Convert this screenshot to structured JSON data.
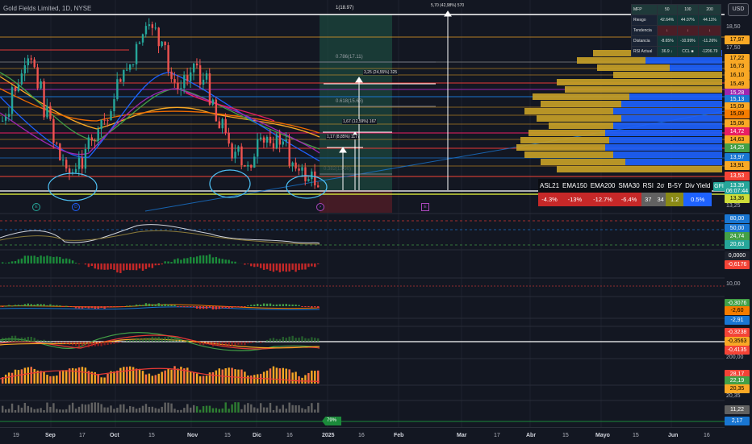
{
  "header": {
    "symbol_title": "Gold Fields Limited, 1D, NYSE",
    "currency": "USD"
  },
  "drawings": {
    "top_level_label": "1(18.97)",
    "big_measure": "5,70 (42,98%) 570",
    "fib_786": "0.786(17.11)",
    "fib_618": "0.618(15.66)",
    "fib_bottom": "0.382(13.90)",
    "measure_1": "3,25 (24,55%) 325",
    "measure_2": "1,67 (12,59%) 167",
    "measure_3": "1,17 (8,85%) 117",
    "osc_badge": "79%",
    "markers": {
      "e1": "E",
      "d": "D",
      "s": "⚡",
      "e2": "E"
    }
  },
  "mfp_table": {
    "header": [
      "MFP",
      "50",
      "100",
      "200"
    ],
    "rows": [
      {
        "label": "Riesgo",
        "values": [
          "42.64%",
          "44.07%",
          "44.11%"
        ]
      },
      {
        "label": "Tendencia",
        "values": [
          "↓",
          "↓",
          "↓"
        ]
      },
      {
        "label": "Distancia",
        "values": [
          "-8.65%",
          "-10.99%",
          "-11.26%"
        ]
      },
      {
        "label": "RSI Actual",
        "values": [
          "36.9 ↓",
          "CCL ■",
          "-1206.79"
        ]
      }
    ]
  },
  "indicator_table": {
    "headers": [
      "ASL21",
      "EMA150",
      "EMA200",
      "SMA30",
      "RSI",
      "2σ",
      "B-5Y",
      "Div Yield"
    ],
    "values": [
      "-4.3%",
      "-13%",
      "-12.7%",
      "-6.4%",
      "37",
      "34",
      "1.2",
      "0.5%"
    ]
  },
  "price_axis": {
    "tags": [
      {
        "text": "17,97",
        "color": "#f9a825",
        "fg": "#000000"
      },
      {
        "text": "17,22",
        "color": "#f9a825",
        "fg": "#000000"
      },
      {
        "text": "16,73",
        "color": "#f9a825",
        "fg": "#000000"
      },
      {
        "text": "16,10",
        "color": "#f9a825",
        "fg": "#000000"
      },
      {
        "text": "15,49",
        "color": "#f9a825",
        "fg": "#000000"
      },
      {
        "text": "15,28",
        "color": "#9c27b0",
        "fg": "#ffffff"
      },
      {
        "text": "15,13",
        "color": "#1976d2",
        "fg": "#ffffff"
      },
      {
        "text": "15,09",
        "color": "#f9a825",
        "fg": "#000000"
      },
      {
        "text": "15,09",
        "color": "#f57c00",
        "fg": "#000000"
      },
      {
        "text": "15,06",
        "color": "#f9a825",
        "fg": "#000000"
      },
      {
        "text": "14,72",
        "color": "#e91e63",
        "fg": "#ffffff"
      },
      {
        "text": "14,63",
        "color": "#f9a825",
        "fg": "#000000"
      },
      {
        "text": "14,25",
        "color": "#43a047",
        "fg": "#ffffff"
      },
      {
        "text": "13,97",
        "color": "#1976d2",
        "fg": "#ffffff"
      },
      {
        "text": "13,91",
        "color": "#f9a825",
        "fg": "#000000"
      },
      {
        "text": "13,53",
        "color": "#f44336",
        "fg": "#ffffff"
      },
      {
        "text": "13,39",
        "color": "#26a69a",
        "fg": "#ffffff"
      },
      {
        "text": "06:07:44",
        "color": "#26a69a",
        "fg": "#ffffff"
      },
      {
        "text": "13,36",
        "color": "#cddc39",
        "fg": "#000000"
      },
      {
        "text": "80,00",
        "color": "#1976d2",
        "fg": "#ffffff"
      },
      {
        "text": "50,00",
        "color": "#1976d2",
        "fg": "#ffffff"
      },
      {
        "text": "24,74",
        "color": "#43a047",
        "fg": "#ffffff"
      },
      {
        "text": "20,63",
        "color": "#26a69a",
        "fg": "#ffffff"
      },
      {
        "text": "0,0000",
        "color": "#1e222d",
        "fg": "#ffffff"
      },
      {
        "text": "-0,6176",
        "color": "#f44336",
        "fg": "#ffffff"
      },
      {
        "text": "-0,3076",
        "color": "#43a047",
        "fg": "#ffffff"
      },
      {
        "text": "-2,60",
        "color": "#f57c00",
        "fg": "#000000"
      },
      {
        "text": "-2,91",
        "color": "#1976d2",
        "fg": "#ffffff"
      },
      {
        "text": "-0,3238",
        "color": "#f44336",
        "fg": "#ffffff"
      },
      {
        "text": "-0,3563",
        "color": "#f9a825",
        "fg": "#000000"
      },
      {
        "text": "-0,4135",
        "color": "#f44336",
        "fg": "#ffffff"
      },
      {
        "text": "28,17",
        "color": "#f44336",
        "fg": "#ffffff"
      },
      {
        "text": "22,19",
        "color": "#43a047",
        "fg": "#ffffff"
      },
      {
        "text": "20,35",
        "color": "#f9a825",
        "fg": "#000000"
      },
      {
        "text": "11,22",
        "color": "#616161",
        "fg": "#ffffff"
      },
      {
        "text": "2,17",
        "color": "#1976d2",
        "fg": "#ffffff"
      }
    ],
    "plain": [
      "18,50",
      "17,50",
      "13,25",
      "10,00",
      "200,00",
      "20,35"
    ],
    "symbol_tag": "GFI"
  },
  "time_axis": {
    "ticks": [
      "19",
      "Sep",
      "17",
      "Oct",
      "15",
      "Nov",
      "15",
      "Dic",
      "16",
      "2025",
      "16",
      "Feb",
      "Mar",
      "17",
      "Abr",
      "15",
      "Mayo",
      "15",
      "Jun",
      "16"
    ]
  }
}
